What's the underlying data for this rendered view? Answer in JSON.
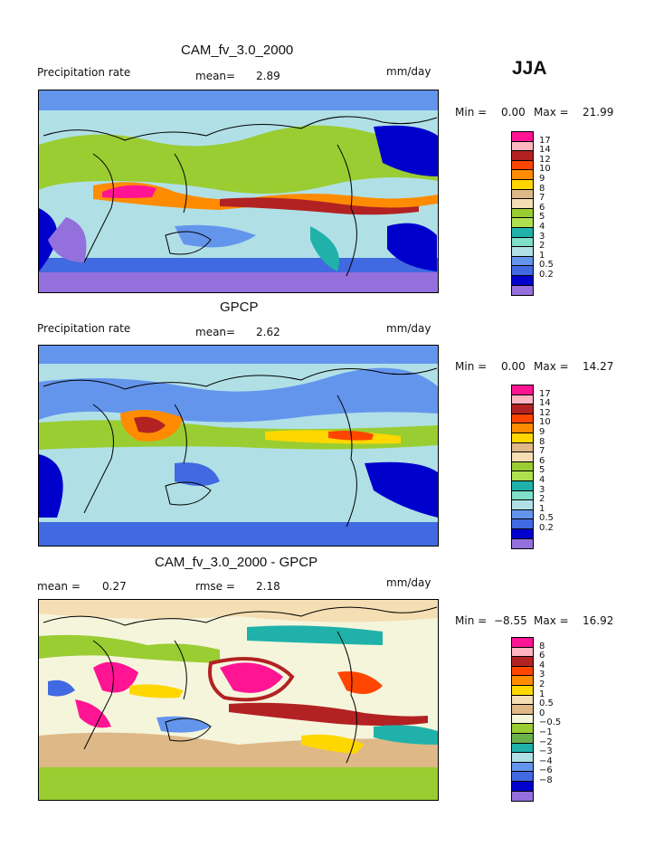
{
  "season": "JJA",
  "palettes": {
    "precip": [
      "#ff1493",
      "#ffb6c1",
      "#b22222",
      "#ff4500",
      "#ff8c00",
      "#ffd700",
      "#deb887",
      "#f5deb3",
      "#9acd32",
      "#b0e050",
      "#20b2aa",
      "#7fdfc8",
      "#b0e0e6",
      "#6495ed",
      "#4169e1",
      "#0000cd",
      "#9370db"
    ],
    "diff": [
      "#ff1493",
      "#ffb6c1",
      "#b22222",
      "#ff4500",
      "#ff8c00",
      "#ffd700",
      "#f5deb3",
      "#deb887",
      "#f5f5dc",
      "#9acd32",
      "#6ab04c",
      "#20b2aa",
      "#b0e0e6",
      "#6495ed",
      "#4169e1",
      "#0000cd",
      "#9370db"
    ]
  },
  "panels": [
    {
      "title": "CAM_fv_3.0_2000",
      "left_label": "Precipitation rate",
      "mean_label": "mean=",
      "mean_value": "2.89",
      "units": "mm/day",
      "min_label": "Min =",
      "min_value": "0.00",
      "max_label": "Max =",
      "max_value": "21.99",
      "palette": "precip",
      "ticks": [
        "17",
        "14",
        "12",
        "10",
        "9",
        "8",
        "7",
        "6",
        "5",
        "4",
        "3",
        "2",
        "1",
        "0.5",
        "0.2"
      ]
    },
    {
      "title": "GPCP",
      "left_label": "Precipitation rate",
      "mean_label": "mean=",
      "mean_value": "2.62",
      "units": "mm/day",
      "min_label": "Min =",
      "min_value": "0.00",
      "max_label": "Max =",
      "max_value": "14.27",
      "palette": "precip",
      "ticks": [
        "17",
        "14",
        "12",
        "10",
        "9",
        "8",
        "7",
        "6",
        "5",
        "4",
        "3",
        "2",
        "1",
        "0.5",
        "0.2"
      ]
    },
    {
      "title": "CAM_fv_3.0_2000 - GPCP",
      "left_label": "mean =",
      "left_value": "0.27",
      "mean_label": "rmse =",
      "mean_value": "2.18",
      "units": "mm/day",
      "min_label": "Min =",
      "min_value": "−8.55",
      "max_label": "Max =",
      "max_value": "16.92",
      "palette": "diff",
      "ticks": [
        "8",
        "6",
        "4",
        "3",
        "2",
        "1",
        "0.5",
        "0",
        "−0.5",
        "−1",
        "−2",
        "−3",
        "−4",
        "−6",
        "−8"
      ]
    }
  ]
}
